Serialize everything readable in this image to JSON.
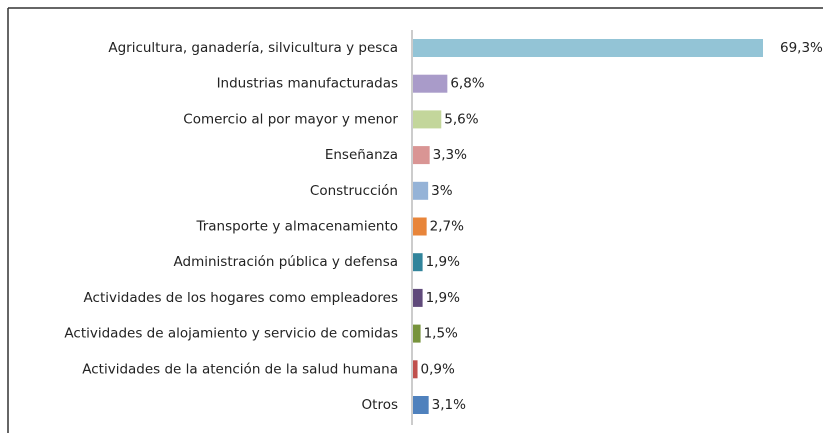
{
  "chart_data": {
    "type": "barh",
    "categories": [
      "Agricultura, ganadería, silvicultura y pesca",
      "Industrias manufacturadas",
      "Comercio al por mayor y menor",
      "Enseñanza",
      "Construcción",
      "Transporte y almacenamiento",
      "Administración pública y defensa",
      "Actividades de los hogares como empleadores",
      "Actividades de alojamiento y servicio de comidas",
      "Actividades de la atención de la salud humana",
      "Otros"
    ],
    "values": [
      69.3,
      6.8,
      5.6,
      3.3,
      3,
      2.7,
      1.9,
      1.9,
      1.5,
      0.9,
      3.1
    ],
    "value_labels": [
      "69,3%",
      "6,8%",
      "5,6%",
      "3,3%",
      "3%",
      "2,7%",
      "1,9%",
      "1,9%",
      "1,5%",
      "0,9%",
      "3,1%"
    ],
    "colors": [
      "#93c4d6",
      "#a99bc9",
      "#c3d69b",
      "#d99594",
      "#95b3d7",
      "#e8853a",
      "#31849b",
      "#604a7b",
      "#77933c",
      "#c0504d",
      "#4f81bd"
    ]
  }
}
